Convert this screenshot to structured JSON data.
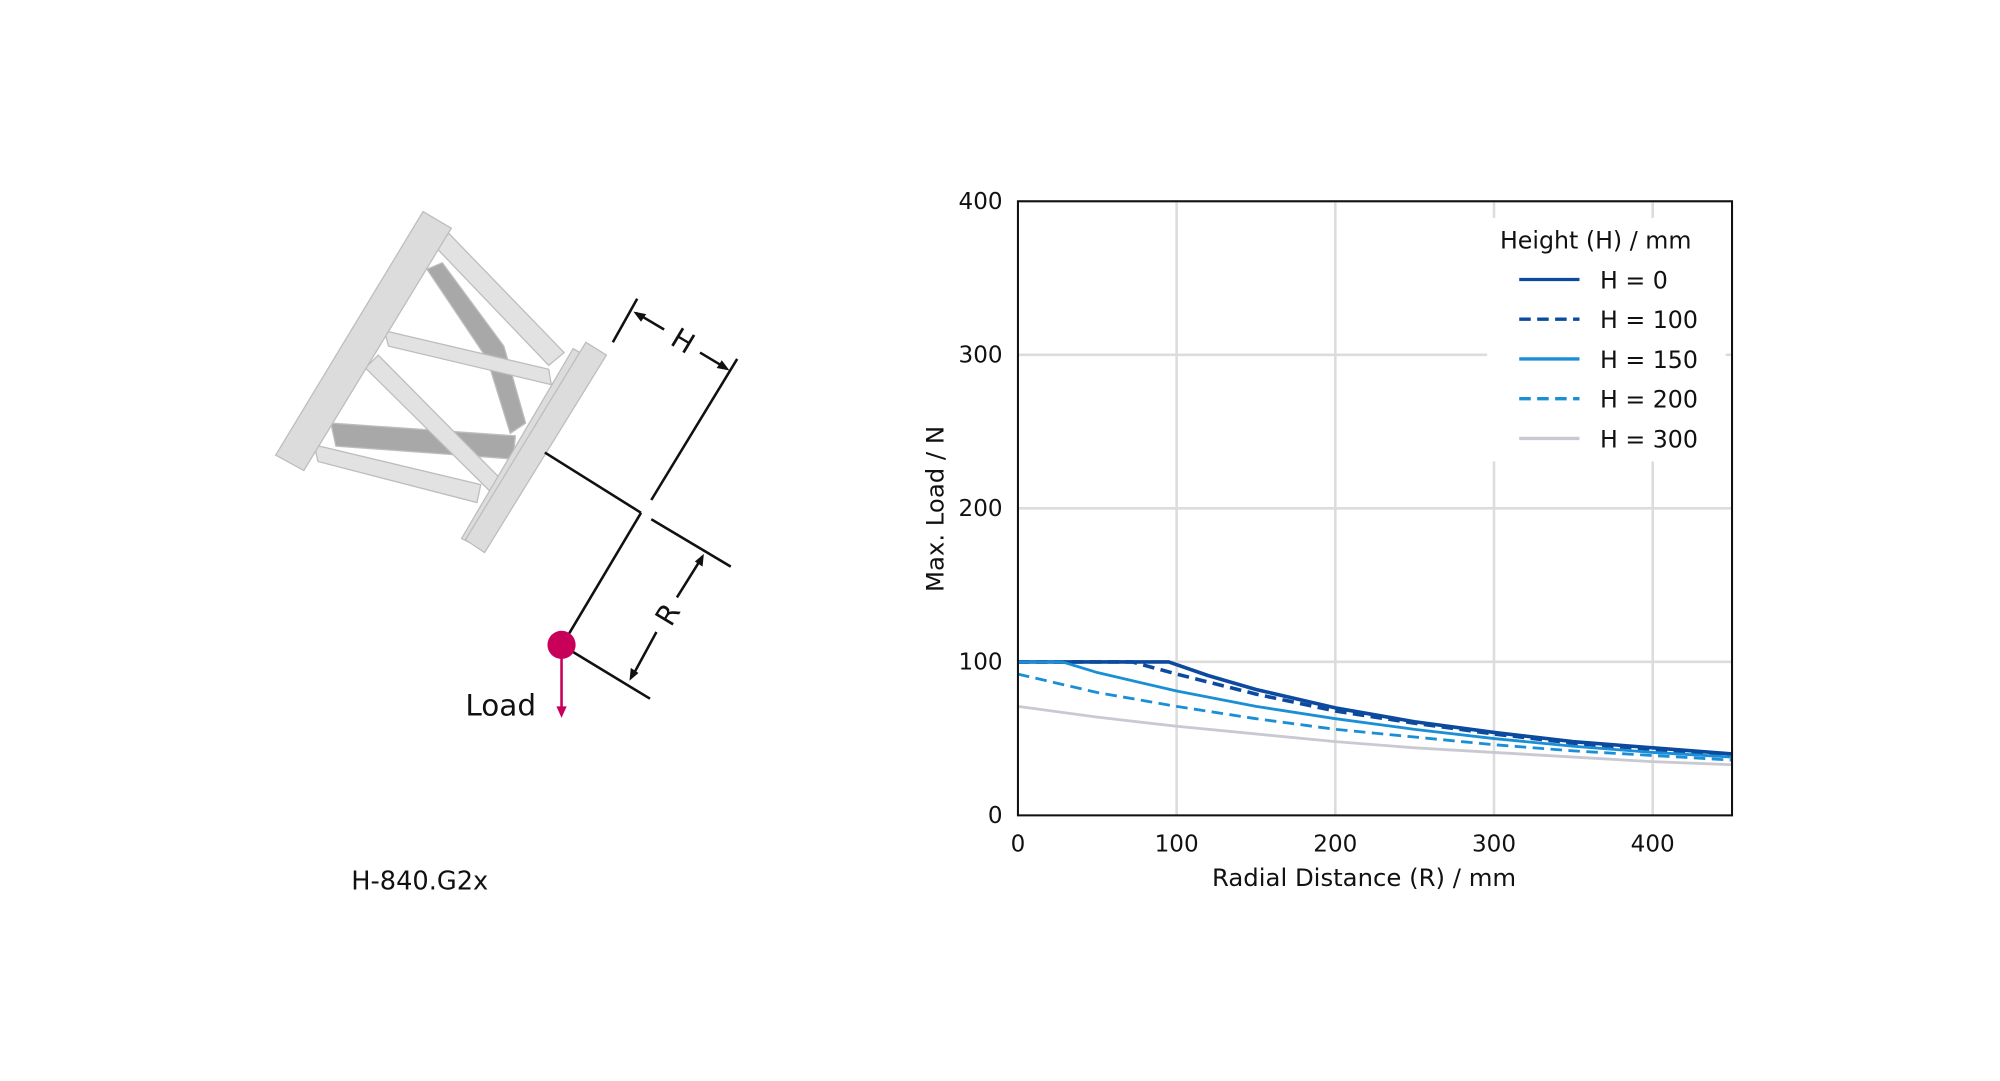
{
  "diagram": {
    "model_label": "H-840.G2x",
    "load_label": "Load",
    "height_label": "H",
    "radius_label": "R",
    "load_color": "#c8005a",
    "plate_color": "#dcdcdc",
    "strut_dark_color": "#a8a8a8"
  },
  "chart_data": {
    "type": "line",
    "xlabel": "Radial Distance (R) / mm",
    "ylabel": "Max. Load / N",
    "xlim": [
      0,
      450
    ],
    "ylim": [
      0,
      400
    ],
    "xticks": [
      0,
      100,
      200,
      300,
      400
    ],
    "yticks": [
      0,
      100,
      200,
      300,
      400
    ],
    "grid": true,
    "legend": {
      "title": "Height (H) / mm",
      "placement": "top-right"
    },
    "series": [
      {
        "name": "H = 0",
        "color": "#0b4a9e",
        "dash": false,
        "x": [
          0,
          95,
          120,
          150,
          200,
          250,
          300,
          350,
          400,
          450
        ],
        "y": [
          100,
          100,
          91,
          82,
          70,
          61,
          54,
          48,
          44,
          40
        ]
      },
      {
        "name": "H = 100",
        "color": "#0b4a9e",
        "dash": true,
        "x": [
          0,
          72,
          100,
          150,
          200,
          250,
          300,
          350,
          400,
          450
        ],
        "y": [
          100,
          100,
          92,
          79,
          68,
          60,
          53,
          47,
          43,
          39
        ]
      },
      {
        "name": "H = 150",
        "color": "#1b8fd6",
        "dash": false,
        "x": [
          0,
          28,
          50,
          100,
          150,
          200,
          250,
          300,
          350,
          400,
          450
        ],
        "y": [
          100,
          100,
          93,
          81,
          71,
          63,
          56,
          50,
          45,
          41,
          38
        ]
      },
      {
        "name": "H = 200",
        "color": "#1b8fd6",
        "dash": true,
        "x": [
          0,
          50,
          100,
          150,
          200,
          250,
          300,
          350,
          400,
          450
        ],
        "y": [
          92,
          80,
          71,
          63,
          56,
          51,
          46,
          42,
          39,
          36
        ]
      },
      {
        "name": "H = 300",
        "color": "#c9c9d2",
        "dash": false,
        "x": [
          0,
          50,
          100,
          150,
          200,
          250,
          300,
          350,
          400,
          450
        ],
        "y": [
          71,
          64,
          58,
          53,
          48,
          44,
          41,
          38,
          35,
          33
        ]
      }
    ]
  }
}
